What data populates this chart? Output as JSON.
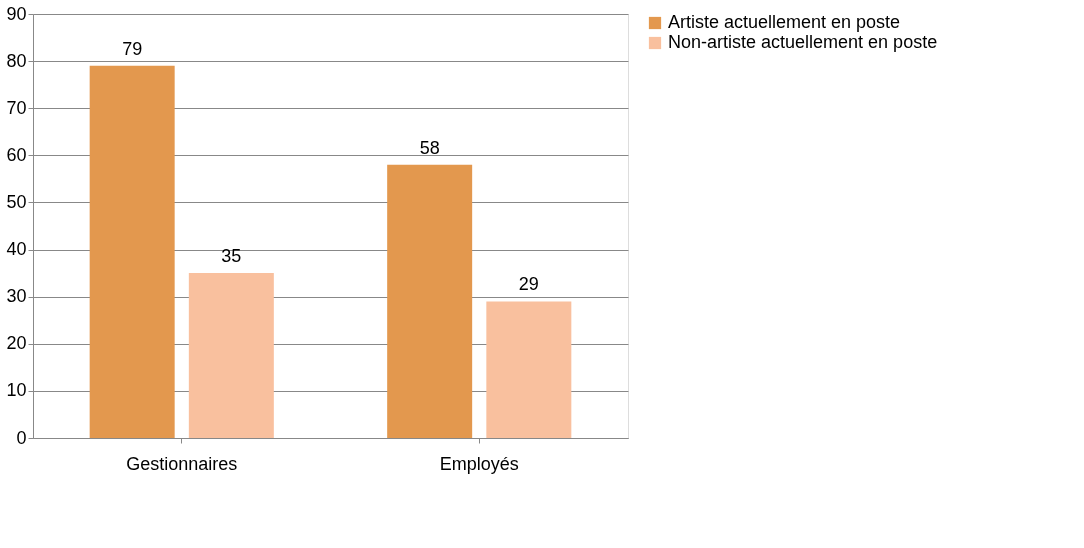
{
  "chart_data": {
    "type": "bar",
    "categories": [
      "Gestionnaires",
      "Employés"
    ],
    "series": [
      {
        "name": "Artiste actuellement en poste",
        "color": "#e3984e",
        "values": [
          79,
          58
        ]
      },
      {
        "name": "Non-artiste actuellement en poste",
        "color": "#f9c09e",
        "values": [
          35,
          29
        ]
      }
    ],
    "ylim": [
      0,
      90
    ],
    "yticks": [
      0,
      10,
      20,
      30,
      40,
      50,
      60,
      70,
      80,
      90
    ],
    "grid": "y",
    "legend": "right",
    "data_labels": true
  }
}
